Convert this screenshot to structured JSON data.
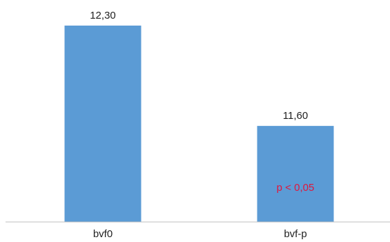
{
  "chart_data": {
    "type": "bar",
    "categories": [
      "bvf0",
      "bvf-p"
    ],
    "values": [
      12.3,
      11.6
    ],
    "data_labels": [
      "12,30",
      "11,60"
    ],
    "title": "",
    "xlabel": "",
    "ylabel": "",
    "bar_color": "#5b9bd5",
    "grid": false,
    "legend": "none",
    "annotations": [
      {
        "text": "p < 0,05",
        "category": "bvf-p",
        "color": "#e0163c"
      }
    ]
  }
}
